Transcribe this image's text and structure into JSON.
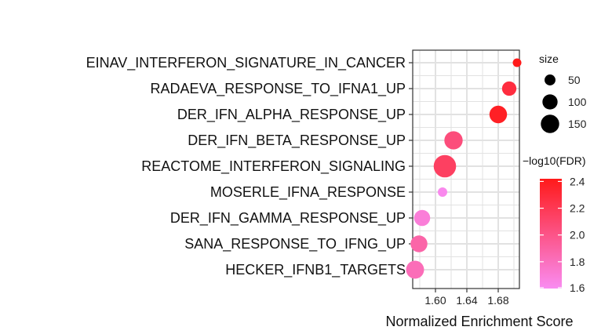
{
  "chart_data": {
    "type": "scatter",
    "xlabel": "Normalized Enrichment Score",
    "ylabel": "",
    "xlim": [
      1.571,
      1.707
    ],
    "xticks": [
      "1.60",
      "1.64",
      "1.68"
    ],
    "xtick_values": [
      1.6,
      1.64,
      1.68
    ],
    "grid": true,
    "categories": [
      "EINAV_INTERFERON_SIGNATURE_IN_CANCER",
      "RADAEVA_RESPONSE_TO_IFNA1_UP",
      "DER_IFN_ALPHA_RESPONSE_UP",
      "DER_IFN_BETA_RESPONSE_UP",
      "REACTOME_INTERFERON_SIGNALING",
      "MOSERLE_IFNA_RESPONSE",
      "DER_IFN_GAMMA_RESPONSE_UP",
      "SANA_RESPONSE_TO_IFNG_UP",
      "HECKER_IFNB1_TARGETS"
    ],
    "points": [
      {
        "term": "EINAV_INTERFERON_SIGNATURE_IN_CANCER",
        "x": 1.704,
        "size": 25,
        "neg_log10_fdr": 2.42
      },
      {
        "term": "RADAEVA_RESPONSE_TO_IFNA1_UP",
        "x": 1.694,
        "size": 75,
        "neg_log10_fdr": 2.28
      },
      {
        "term": "DER_IFN_ALPHA_RESPONSE_UP",
        "x": 1.68,
        "size": 115,
        "neg_log10_fdr": 2.38
      },
      {
        "term": "DER_IFN_BETA_RESPONSE_UP",
        "x": 1.623,
        "size": 125,
        "neg_log10_fdr": 2.05
      },
      {
        "term": "REACTOME_INTERFERON_SIGNALING",
        "x": 1.612,
        "size": 190,
        "neg_log10_fdr": 2.15
      },
      {
        "term": "MOSERLE_IFNA_RESPONSE",
        "x": 1.609,
        "size": 30,
        "neg_log10_fdr": 1.62
      },
      {
        "term": "DER_IFN_GAMMA_RESPONSE_UP",
        "x": 1.583,
        "size": 95,
        "neg_log10_fdr": 1.7
      },
      {
        "term": "SANA_RESPONSE_TO_IFNG_UP",
        "x": 1.579,
        "size": 105,
        "neg_log10_fdr": 1.88
      },
      {
        "term": "HECKER_IFNB1_TARGETS",
        "x": 1.574,
        "size": 120,
        "neg_log10_fdr": 1.82
      }
    ],
    "size_legend": {
      "title": "size",
      "entries": [
        {
          "label": "50",
          "value": 50
        },
        {
          "label": "100",
          "value": 100
        },
        {
          "label": "150",
          "value": 150
        }
      ]
    },
    "color_legend": {
      "title": "−log10(FDR)",
      "range": [
        1.6,
        2.42
      ],
      "ticks": [
        {
          "label": "2.4",
          "value": 2.4
        },
        {
          "label": "2.2",
          "value": 2.2
        },
        {
          "label": "2.0",
          "value": 2.0
        },
        {
          "label": "1.8",
          "value": 1.8
        },
        {
          "label": "1.6",
          "value": 1.6
        }
      ],
      "low_color": "#f98cf2",
      "high_color": "#ff1a1a"
    },
    "panel_background": "#ffffff",
    "grid_color": "#e2e2e2",
    "legend_placement": "right"
  }
}
